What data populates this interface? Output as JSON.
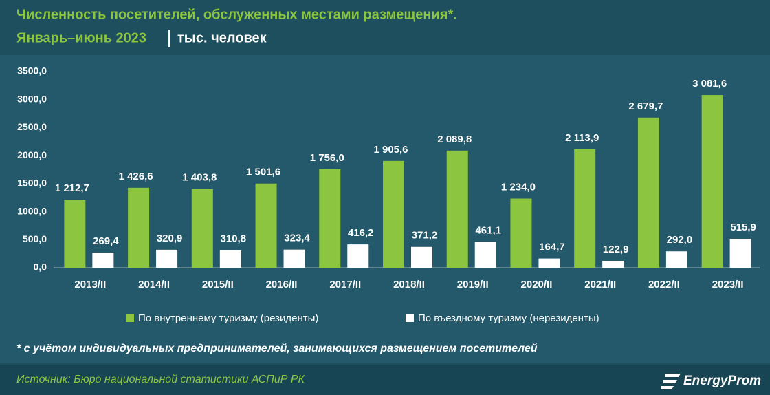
{
  "chart_data": {
    "type": "bar",
    "title": "Численность посетителей, обслуженных местами размещения*.",
    "subtitle": "Январь–июнь 2023",
    "unit": "тыс. человек",
    "categories": [
      "2013/II",
      "2014/II",
      "2015/II",
      "2016/II",
      "2017/II",
      "2018/II",
      "2019/II",
      "2020/II",
      "2021/II",
      "2022/II",
      "2023/II"
    ],
    "series": [
      {
        "name": "По внутреннему туризму (резиденты)",
        "color": "#8cc540",
        "values": [
          1212.7,
          1426.6,
          1403.8,
          1501.6,
          1756.0,
          1905.6,
          2089.8,
          1234.0,
          2113.9,
          2679.7,
          3081.6
        ],
        "value_labels": [
          "1 212,7",
          "1 426,6",
          "1 403,8",
          "1 501,6",
          "1 756,0",
          "1 905,6",
          "2 089,8",
          "1 234,0",
          "2 113,9",
          "2 679,7",
          "3 081,6"
        ]
      },
      {
        "name": "По въездному туризму (нерезиденты)",
        "color": "#ffffff",
        "values": [
          269.4,
          320.9,
          310.8,
          323.4,
          416.2,
          371.2,
          461.1,
          164.7,
          122.9,
          292.0,
          515.9
        ],
        "value_labels": [
          "269,4",
          "320,9",
          "310,8",
          "323,4",
          "416,2",
          "371,2",
          "461,1",
          "164,7",
          "122,9",
          "292,0",
          "515,9"
        ]
      }
    ],
    "ylim": [
      0,
      3500
    ],
    "yticks": [
      {
        "value": 0,
        "label": "0,0"
      },
      {
        "value": 500,
        "label": "500,0"
      },
      {
        "value": 1000,
        "label": "1000,0"
      },
      {
        "value": 1500,
        "label": "1500,0"
      },
      {
        "value": 2000,
        "label": "2000,0"
      },
      {
        "value": 2500,
        "label": "2500,0"
      },
      {
        "value": 3000,
        "label": "3000,0"
      },
      {
        "value": 3500,
        "label": "3500,0"
      }
    ],
    "grid": false,
    "footnote": "* с учётом индивидуальных предпринимателей, занимающихся размещением посетителей",
    "source": "Источник: Бюро национальной статистики АСПиР РК",
    "logo": "EnergyProm"
  }
}
